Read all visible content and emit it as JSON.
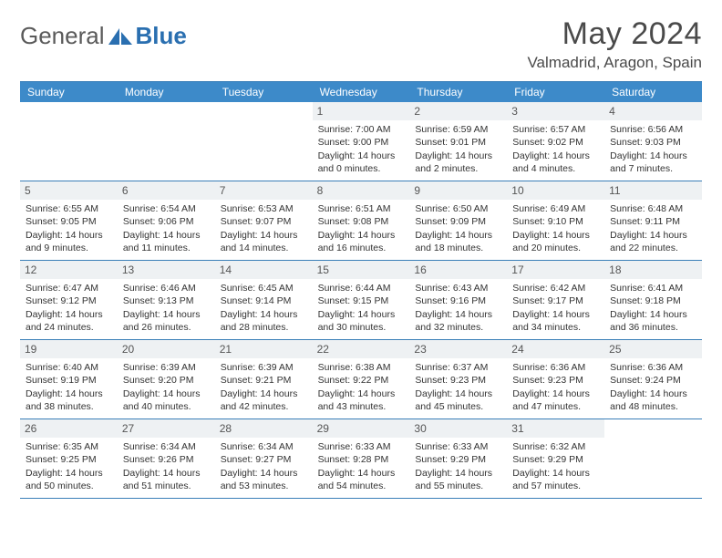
{
  "logo": {
    "text1": "General",
    "text2": "Blue"
  },
  "header": {
    "title": "May 2024",
    "location": "Valmadrid, Aragon, Spain"
  },
  "calendar": {
    "day_names": [
      "Sunday",
      "Monday",
      "Tuesday",
      "Wednesday",
      "Thursday",
      "Friday",
      "Saturday"
    ],
    "colors": {
      "header_bg": "#3d8ac9",
      "header_text": "#ffffff",
      "border": "#3a7fb8",
      "daynum_bg": "#eef1f3"
    },
    "weeks": [
      [
        null,
        null,
        null,
        {
          "n": "1",
          "lines": [
            "Sunrise: 7:00 AM",
            "Sunset: 9:00 PM",
            "Daylight: 14 hours and 0 minutes."
          ]
        },
        {
          "n": "2",
          "lines": [
            "Sunrise: 6:59 AM",
            "Sunset: 9:01 PM",
            "Daylight: 14 hours and 2 minutes."
          ]
        },
        {
          "n": "3",
          "lines": [
            "Sunrise: 6:57 AM",
            "Sunset: 9:02 PM",
            "Daylight: 14 hours and 4 minutes."
          ]
        },
        {
          "n": "4",
          "lines": [
            "Sunrise: 6:56 AM",
            "Sunset: 9:03 PM",
            "Daylight: 14 hours and 7 minutes."
          ]
        }
      ],
      [
        {
          "n": "5",
          "lines": [
            "Sunrise: 6:55 AM",
            "Sunset: 9:05 PM",
            "Daylight: 14 hours and 9 minutes."
          ]
        },
        {
          "n": "6",
          "lines": [
            "Sunrise: 6:54 AM",
            "Sunset: 9:06 PM",
            "Daylight: 14 hours and 11 minutes."
          ]
        },
        {
          "n": "7",
          "lines": [
            "Sunrise: 6:53 AM",
            "Sunset: 9:07 PM",
            "Daylight: 14 hours and 14 minutes."
          ]
        },
        {
          "n": "8",
          "lines": [
            "Sunrise: 6:51 AM",
            "Sunset: 9:08 PM",
            "Daylight: 14 hours and 16 minutes."
          ]
        },
        {
          "n": "9",
          "lines": [
            "Sunrise: 6:50 AM",
            "Sunset: 9:09 PM",
            "Daylight: 14 hours and 18 minutes."
          ]
        },
        {
          "n": "10",
          "lines": [
            "Sunrise: 6:49 AM",
            "Sunset: 9:10 PM",
            "Daylight: 14 hours and 20 minutes."
          ]
        },
        {
          "n": "11",
          "lines": [
            "Sunrise: 6:48 AM",
            "Sunset: 9:11 PM",
            "Daylight: 14 hours and 22 minutes."
          ]
        }
      ],
      [
        {
          "n": "12",
          "lines": [
            "Sunrise: 6:47 AM",
            "Sunset: 9:12 PM",
            "Daylight: 14 hours and 24 minutes."
          ]
        },
        {
          "n": "13",
          "lines": [
            "Sunrise: 6:46 AM",
            "Sunset: 9:13 PM",
            "Daylight: 14 hours and 26 minutes."
          ]
        },
        {
          "n": "14",
          "lines": [
            "Sunrise: 6:45 AM",
            "Sunset: 9:14 PM",
            "Daylight: 14 hours and 28 minutes."
          ]
        },
        {
          "n": "15",
          "lines": [
            "Sunrise: 6:44 AM",
            "Sunset: 9:15 PM",
            "Daylight: 14 hours and 30 minutes."
          ]
        },
        {
          "n": "16",
          "lines": [
            "Sunrise: 6:43 AM",
            "Sunset: 9:16 PM",
            "Daylight: 14 hours and 32 minutes."
          ]
        },
        {
          "n": "17",
          "lines": [
            "Sunrise: 6:42 AM",
            "Sunset: 9:17 PM",
            "Daylight: 14 hours and 34 minutes."
          ]
        },
        {
          "n": "18",
          "lines": [
            "Sunrise: 6:41 AM",
            "Sunset: 9:18 PM",
            "Daylight: 14 hours and 36 minutes."
          ]
        }
      ],
      [
        {
          "n": "19",
          "lines": [
            "Sunrise: 6:40 AM",
            "Sunset: 9:19 PM",
            "Daylight: 14 hours and 38 minutes."
          ]
        },
        {
          "n": "20",
          "lines": [
            "Sunrise: 6:39 AM",
            "Sunset: 9:20 PM",
            "Daylight: 14 hours and 40 minutes."
          ]
        },
        {
          "n": "21",
          "lines": [
            "Sunrise: 6:39 AM",
            "Sunset: 9:21 PM",
            "Daylight: 14 hours and 42 minutes."
          ]
        },
        {
          "n": "22",
          "lines": [
            "Sunrise: 6:38 AM",
            "Sunset: 9:22 PM",
            "Daylight: 14 hours and 43 minutes."
          ]
        },
        {
          "n": "23",
          "lines": [
            "Sunrise: 6:37 AM",
            "Sunset: 9:23 PM",
            "Daylight: 14 hours and 45 minutes."
          ]
        },
        {
          "n": "24",
          "lines": [
            "Sunrise: 6:36 AM",
            "Sunset: 9:23 PM",
            "Daylight: 14 hours and 47 minutes."
          ]
        },
        {
          "n": "25",
          "lines": [
            "Sunrise: 6:36 AM",
            "Sunset: 9:24 PM",
            "Daylight: 14 hours and 48 minutes."
          ]
        }
      ],
      [
        {
          "n": "26",
          "lines": [
            "Sunrise: 6:35 AM",
            "Sunset: 9:25 PM",
            "Daylight: 14 hours and 50 minutes."
          ]
        },
        {
          "n": "27",
          "lines": [
            "Sunrise: 6:34 AM",
            "Sunset: 9:26 PM",
            "Daylight: 14 hours and 51 minutes."
          ]
        },
        {
          "n": "28",
          "lines": [
            "Sunrise: 6:34 AM",
            "Sunset: 9:27 PM",
            "Daylight: 14 hours and 53 minutes."
          ]
        },
        {
          "n": "29",
          "lines": [
            "Sunrise: 6:33 AM",
            "Sunset: 9:28 PM",
            "Daylight: 14 hours and 54 minutes."
          ]
        },
        {
          "n": "30",
          "lines": [
            "Sunrise: 6:33 AM",
            "Sunset: 9:29 PM",
            "Daylight: 14 hours and 55 minutes."
          ]
        },
        {
          "n": "31",
          "lines": [
            "Sunrise: 6:32 AM",
            "Sunset: 9:29 PM",
            "Daylight: 14 hours and 57 minutes."
          ]
        },
        null
      ]
    ]
  }
}
